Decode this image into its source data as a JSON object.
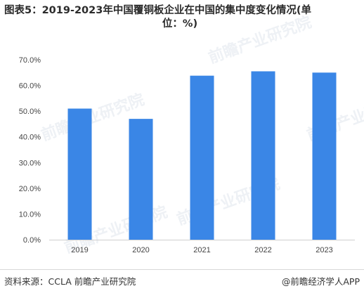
{
  "title_line1": "图表5：2019-2023年中国覆铜板企业在中国的集中度变化情况(单",
  "title_line2": "位：%)",
  "source_text": "资料来源：CCLA 前瞻产业研究院",
  "brand_text": "@前瞻经济学人APP",
  "watermark_text": "前瞻产业研究院",
  "chart_data": {
    "type": "bar",
    "title": "图表5：2019-2023年中国覆铜板企业在中国的集中度变化情况(单位：%)",
    "categories": [
      "2019",
      "2020",
      "2021",
      "2022",
      "2023"
    ],
    "values": [
      51.0,
      47.0,
      63.8,
      65.5,
      65.0
    ],
    "ylim": [
      0,
      70
    ],
    "y_ticks": [
      0,
      10,
      20,
      30,
      40,
      50,
      60,
      70
    ],
    "y_tick_labels": [
      "0.0%",
      "10.0%",
      "20.0%",
      "30.0%",
      "40.0%",
      "50.0%",
      "60.0%",
      "70.0%"
    ],
    "xlabel": "",
    "ylabel": "",
    "grid": false,
    "bar_color": "#3a86e6",
    "axis_color": "#cfcfcf"
  }
}
